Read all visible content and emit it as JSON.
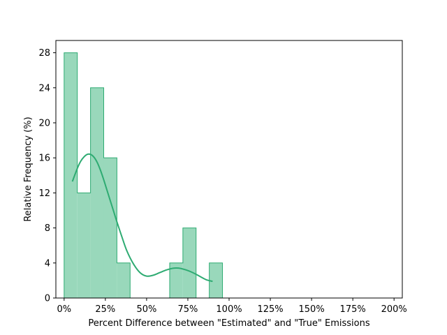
{
  "chart_data": {
    "type": "histogram",
    "xlabel": "Percent Difference between \"Estimated\" and \"True\" Emissions",
    "ylabel": "Relative Frequency (%)",
    "xlim": [
      -5,
      205
    ],
    "ylim": [
      0,
      29.4
    ],
    "xticks": [
      0,
      25,
      50,
      75,
      100,
      125,
      150,
      175,
      200
    ],
    "xtick_labels": [
      "0%",
      "25%",
      "50%",
      "75%",
      "100%",
      "125%",
      "150%",
      "175%",
      "200%"
    ],
    "yticks": [
      0,
      4,
      8,
      12,
      16,
      20,
      24,
      28
    ],
    "ytick_labels": [
      "0",
      "4",
      "8",
      "12",
      "16",
      "20",
      "24",
      "28"
    ],
    "bins": {
      "edges": [
        0,
        8,
        16,
        24,
        32,
        40,
        48,
        56,
        64,
        72,
        80,
        88,
        96,
        104,
        112,
        120,
        128,
        136,
        144,
        152,
        160,
        168,
        176,
        184,
        192,
        200
      ],
      "values": [
        28,
        12,
        24,
        16,
        4,
        0,
        0,
        0,
        4,
        8,
        0,
        4,
        0,
        0,
        0,
        0,
        0,
        0,
        0,
        0,
        0,
        0,
        0,
        0,
        0
      ]
    },
    "kde": {
      "x": [
        5,
        8,
        10,
        12,
        14,
        16,
        18,
        20,
        22,
        24,
        26,
        28,
        30,
        32,
        35,
        38,
        42,
        46,
        50,
        54,
        58,
        62,
        66,
        70,
        74,
        78,
        82,
        86,
        90
      ],
      "y": [
        13.3,
        14.8,
        15.6,
        16.1,
        16.4,
        16.4,
        16.1,
        15.5,
        14.6,
        13.5,
        12.3,
        11.1,
        9.9,
        8.7,
        7.0,
        5.4,
        3.9,
        2.9,
        2.5,
        2.6,
        2.9,
        3.2,
        3.4,
        3.4,
        3.2,
        2.9,
        2.5,
        2.1,
        1.9
      ]
    },
    "colors": {
      "fill": "#99d8bb",
      "edge": "#2eab72",
      "kde": "#2eab72"
    },
    "grid": false,
    "legend": "none"
  }
}
